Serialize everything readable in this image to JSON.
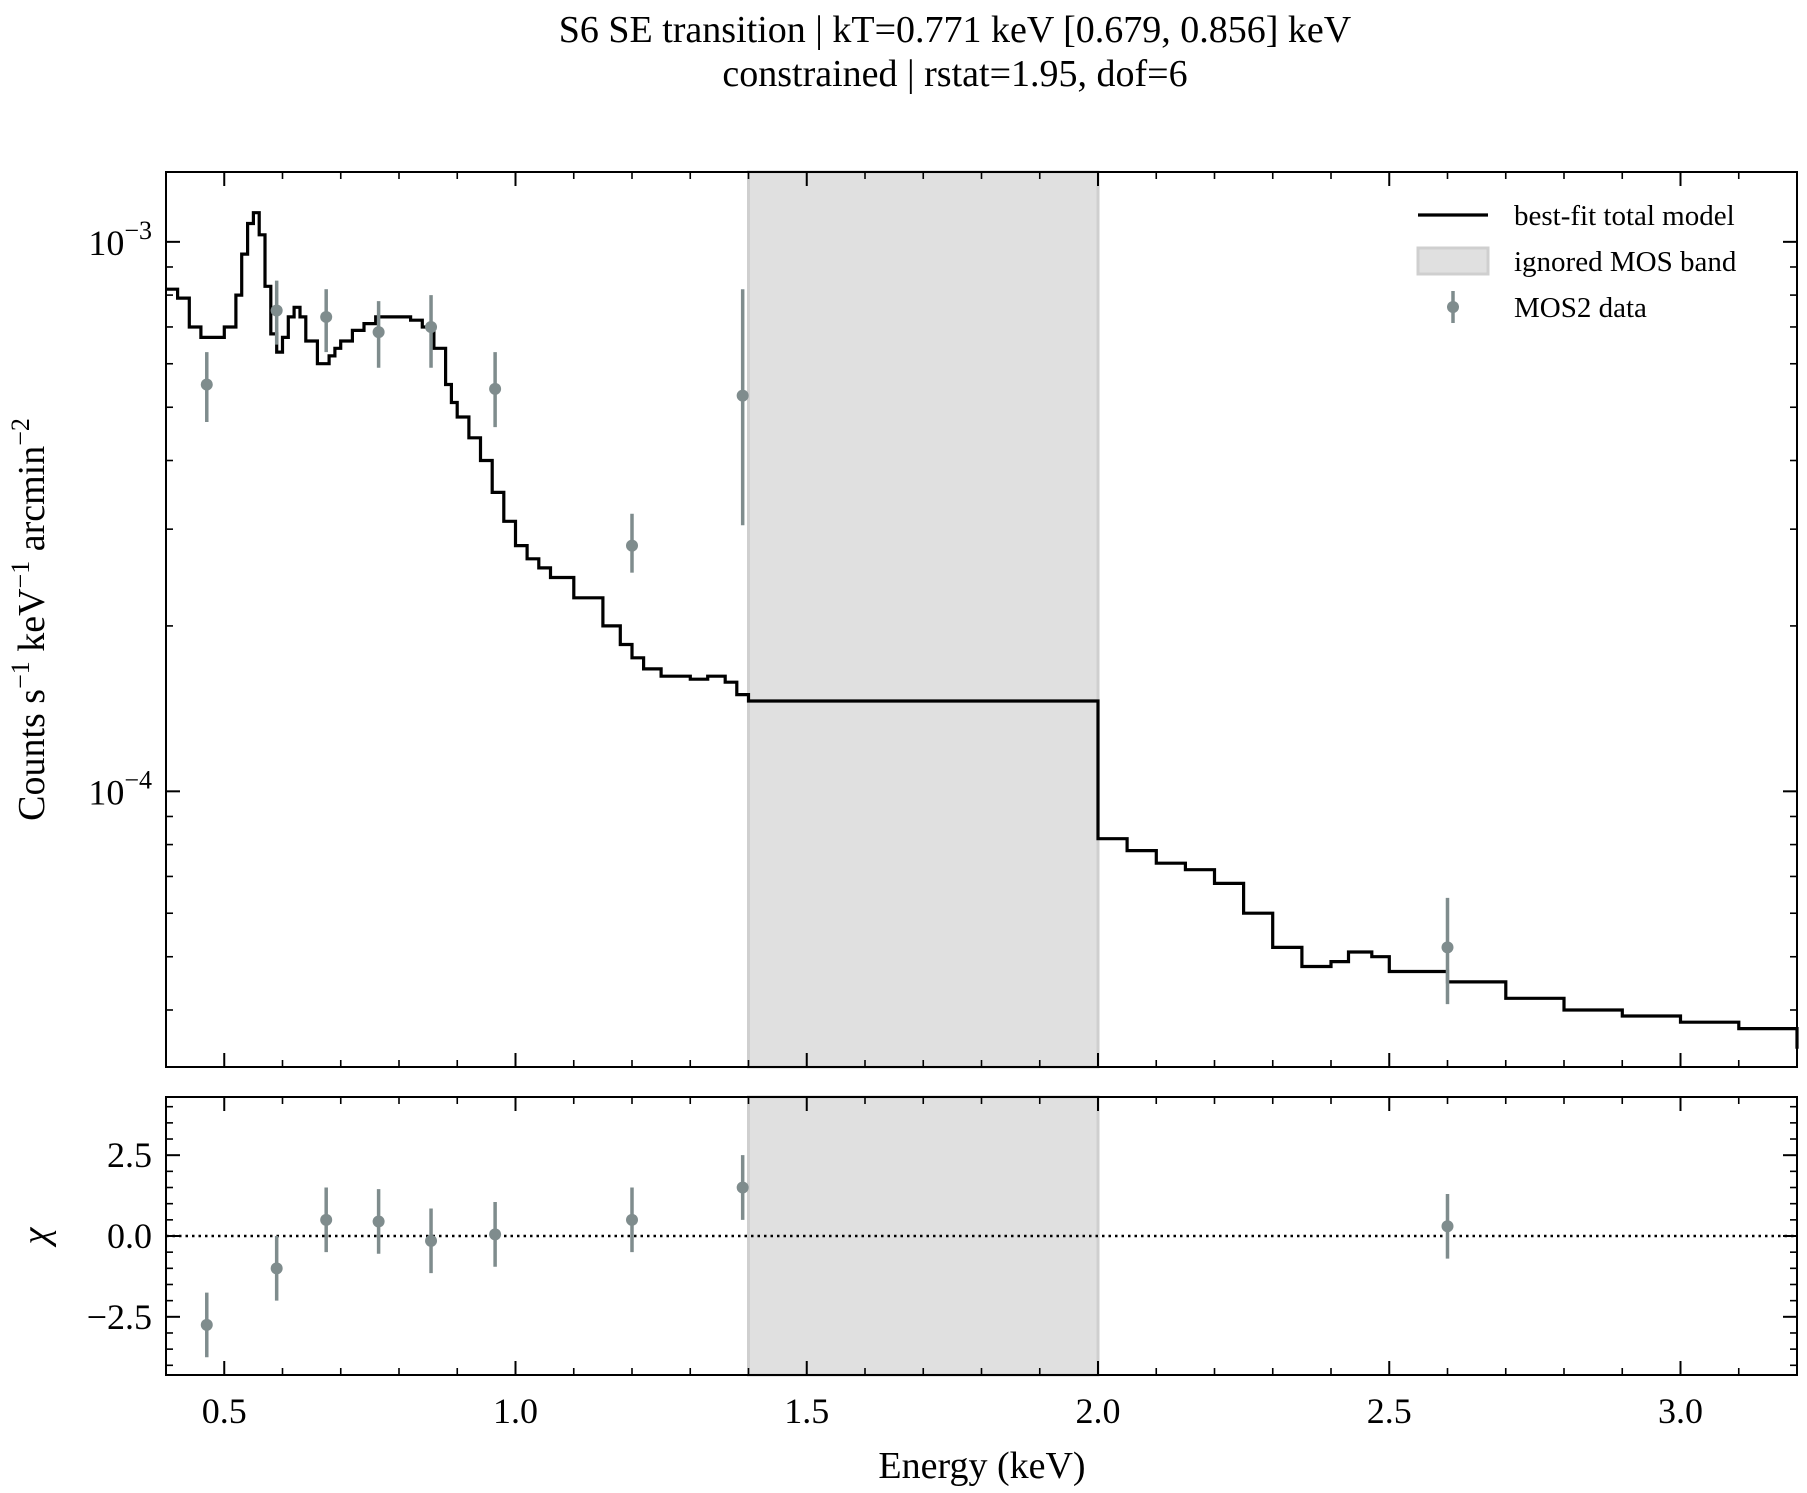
{
  "figure": {
    "title_line1": "S6 SE transition | kT=0.771 keV [0.679, 0.856] keV",
    "title_line2": "constrained | rstat=1.95, dof=6"
  },
  "chart_data": [
    {
      "panel": "spectrum",
      "type": "line",
      "xlabel": "Energy (keV)",
      "ylabel_parts": [
        "Counts s",
        "−1",
        " keV",
        "−1",
        " arcmin",
        "−2"
      ],
      "ylog": true,
      "xlim": [
        0.4,
        3.2
      ],
      "ylim": [
        3.15e-05,
        0.00134
      ],
      "yticks": [
        {
          "value": 0.001,
          "base": "10",
          "exp": "−3"
        },
        {
          "value": 0.0001,
          "base": "10",
          "exp": "−4"
        }
      ],
      "shaded_band": {
        "x0": 1.4,
        "x1": 2.0,
        "label": "ignored MOS band",
        "color": "#e0e0e0"
      },
      "legend": {
        "position": "top-right",
        "entries": [
          {
            "label": "best-fit total model",
            "kind": "line",
            "color": "#000000"
          },
          {
            "label": "ignored MOS band",
            "kind": "patch",
            "color": "#e0e0e0"
          },
          {
            "label": "MOS2 data",
            "kind": "errorbar",
            "color": "#7f8c8d"
          }
        ]
      },
      "series": [
        {
          "name": "best-fit total model",
          "kind": "step-line",
          "color": "#000000",
          "x": [
            0.4,
            0.42,
            0.44,
            0.46,
            0.48,
            0.5,
            0.52,
            0.53,
            0.54,
            0.55,
            0.56,
            0.57,
            0.58,
            0.59,
            0.6,
            0.61,
            0.62,
            0.63,
            0.64,
            0.66,
            0.68,
            0.69,
            0.7,
            0.72,
            0.74,
            0.76,
            0.78,
            0.8,
            0.82,
            0.84,
            0.86,
            0.88,
            0.89,
            0.9,
            0.92,
            0.94,
            0.96,
            0.98,
            1.0,
            1.02,
            1.04,
            1.06,
            1.1,
            1.15,
            1.18,
            1.2,
            1.22,
            1.25,
            1.3,
            1.33,
            1.36,
            1.38,
            1.4,
            1.6,
            1.8,
            2.0,
            2.0,
            2.05,
            2.1,
            2.15,
            2.2,
            2.25,
            2.3,
            2.35,
            2.4,
            2.43,
            2.47,
            2.5,
            2.6,
            2.7,
            2.8,
            2.9,
            3.0,
            3.1,
            3.2
          ],
          "y": [
            0.00082,
            0.00079,
            0.0007,
            0.00067,
            0.00067,
            0.0007,
            0.0008,
            0.00095,
            0.00108,
            0.00113,
            0.00103,
            0.00083,
            0.00068,
            0.00063,
            0.00067,
            0.00073,
            0.00076,
            0.00073,
            0.00066,
            0.0006,
            0.00062,
            0.00064,
            0.00066,
            0.00069,
            0.00071,
            0.00073,
            0.00073,
            0.00073,
            0.00072,
            0.0007,
            0.00064,
            0.00055,
            0.00051,
            0.00048,
            0.00044,
            0.0004,
            0.00035,
            0.00031,
            0.00028,
            0.000265,
            0.000255,
            0.000245,
            0.000225,
            0.0002,
            0.000185,
            0.000175,
            0.000167,
            0.000162,
            0.00016,
            0.000162,
            0.000158,
            0.00015,
            0.000146,
            0.000146,
            0.000146,
            0.000146,
            8.2e-05,
            7.8e-05,
            7.4e-05,
            7.2e-05,
            6.8e-05,
            6e-05,
            5.2e-05,
            4.8e-05,
            4.9e-05,
            5.1e-05,
            5e-05,
            4.7e-05,
            4.5e-05,
            4.2e-05,
            4e-05,
            3.9e-05,
            3.8e-05,
            3.7e-05,
            3.4e-05
          ]
        },
        {
          "name": "MOS2 data",
          "kind": "errorbar",
          "color": "#7f8c8d",
          "x": [
            0.47,
            0.59,
            0.675,
            0.765,
            0.855,
            0.965,
            1.2,
            1.39,
            2.6
          ],
          "y": [
            0.00055,
            0.00075,
            0.00073,
            0.000685,
            0.0007,
            0.00054,
            0.00028,
            0.000525,
            5.2e-05
          ],
          "yerr_low": [
            0.00047,
            0.00065,
            0.00063,
            0.00059,
            0.00059,
            0.00046,
            0.00025,
            0.000305,
            4.1e-05
          ],
          "yerr_high": [
            0.00063,
            0.00085,
            0.00082,
            0.00078,
            0.0008,
            0.00063,
            0.00032,
            0.00082,
            6.4e-05
          ]
        }
      ]
    },
    {
      "panel": "residuals",
      "type": "scatter",
      "xlabel": "Energy (keV)",
      "ylabel": "χ",
      "xlim": [
        0.4,
        3.2
      ],
      "ylim": [
        -4.3,
        4.3
      ],
      "yticks": [
        {
          "value": 2.5,
          "label": "2.5"
        },
        {
          "value": 0.0,
          "label": "0.0"
        },
        {
          "value": -2.5,
          "label": "−2.5"
        }
      ],
      "xticks": [
        {
          "value": 0.5,
          "label": "0.5"
        },
        {
          "value": 1.0,
          "label": "1.0"
        },
        {
          "value": 1.5,
          "label": "1.5"
        },
        {
          "value": 2.0,
          "label": "2.0"
        },
        {
          "value": 2.5,
          "label": "2.5"
        },
        {
          "value": 3.0,
          "label": "3.0"
        }
      ],
      "zero_line": {
        "y": 0.0,
        "style": "dotted",
        "color": "#000000"
      },
      "shaded_band": {
        "x0": 1.4,
        "x1": 2.0,
        "color": "#e0e0e0"
      },
      "series": [
        {
          "name": "MOS2 data",
          "kind": "errorbar",
          "color": "#7f8c8d",
          "x": [
            0.47,
            0.59,
            0.675,
            0.765,
            0.855,
            0.965,
            1.2,
            1.39,
            2.6
          ],
          "y": [
            -2.75,
            -1.0,
            0.5,
            0.45,
            -0.15,
            0.05,
            0.5,
            1.5,
            0.3
          ],
          "yerr": [
            1.0,
            1.0,
            1.0,
            1.0,
            1.0,
            1.0,
            1.0,
            1.0,
            1.0
          ]
        }
      ]
    }
  ]
}
